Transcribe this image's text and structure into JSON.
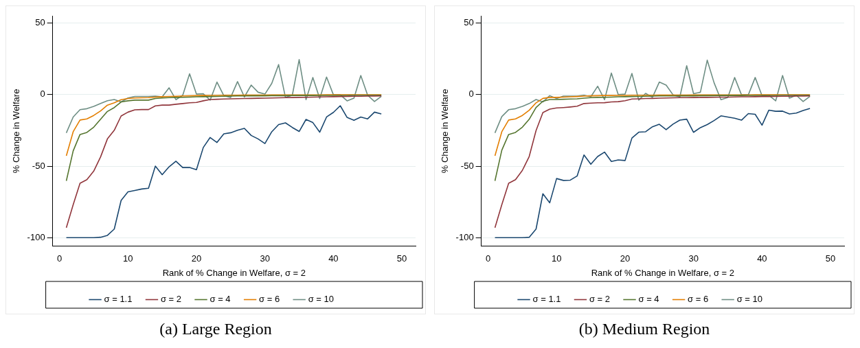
{
  "chart_data": [
    {
      "type": "line",
      "title": "(a) Large Region",
      "xlabel": "Rank of % Change in Welfare, σ = 2",
      "ylabel": "% Change in Welfare",
      "x": [
        1,
        2,
        3,
        4,
        5,
        6,
        7,
        8,
        9,
        10,
        11,
        12,
        13,
        14,
        15,
        16,
        17,
        18,
        19,
        20,
        21,
        22,
        23,
        24,
        25,
        26,
        27,
        28,
        29,
        30,
        31,
        32,
        33,
        34,
        35,
        36,
        37,
        38,
        39,
        40,
        41,
        42,
        43,
        44,
        45,
        46,
        47
      ],
      "xlim": [
        -1,
        52
      ],
      "xticks": [
        0,
        10,
        20,
        30,
        40,
        50
      ],
      "ylim": [
        -106,
        55
      ],
      "yticks": [
        -100,
        -50,
        0,
        50
      ],
      "grid": "y",
      "legend": "bottom",
      "marker": "none",
      "line_style": "solid",
      "series": [
        {
          "name": "σ = 1.1",
          "color": "#1a476f",
          "values": [
            -100,
            -100,
            -100,
            -100,
            -100,
            -99.7,
            -98.4,
            -94,
            -74,
            -68,
            -67,
            -66,
            -65.5,
            -50,
            -56,
            -50.5,
            -46.6,
            -51,
            -51,
            -52.5,
            -37,
            -30,
            -33.5,
            -27.5,
            -26.7,
            -25,
            -23.6,
            -28.6,
            -31,
            -34.2,
            -26,
            -21,
            -19.8,
            -23,
            -25.8,
            -17.4,
            -19.6,
            -26.3,
            -15.7,
            -12.5,
            -7.8,
            -16,
            -18,
            -15.7,
            -17,
            -12.3,
            -13.6
          ]
        },
        {
          "name": "σ = 2",
          "color": "#90353b",
          "values": [
            -93,
            -77,
            -62,
            -59.5,
            -53.5,
            -43.6,
            -31,
            -25,
            -15,
            -12.3,
            -10.7,
            -10.5,
            -10.5,
            -7.9,
            -7.4,
            -7.4,
            -6.8,
            -6.3,
            -5.8,
            -5.5,
            -4.4,
            -3.5,
            -3.3,
            -3.1,
            -3,
            -2.9,
            -2.8,
            -2.7,
            -2.6,
            -2.5,
            -2.4,
            -2.3,
            -2.2,
            -2.1,
            -2,
            -1.9,
            -1.8,
            -1.7,
            -1.6,
            -1.5,
            -1.4,
            -1.3,
            -1.2,
            -1.2,
            -1.1,
            -1.1,
            -1
          ]
        },
        {
          "name": "σ = 4",
          "color": "#55752f",
          "values": [
            -60.3,
            -39.4,
            -27.9,
            -26.5,
            -22.8,
            -17.3,
            -11.8,
            -9.1,
            -5.2,
            -4.4,
            -3.9,
            -3.9,
            -3.9,
            -2.8,
            -2.4,
            -2.2,
            -2,
            -1.9,
            -1.8,
            -1.6,
            -1.5,
            -1.4,
            -1.3,
            -1.2,
            -1.1,
            -1,
            -1,
            -0.9,
            -0.9,
            -0.9,
            -0.8,
            -0.8,
            -0.8,
            -0.7,
            -0.7,
            -0.7,
            -0.7,
            -0.6,
            -0.6,
            -0.6,
            -0.6,
            -0.6,
            -0.5,
            -0.5,
            -0.5,
            -0.5,
            -0.5
          ]
        },
        {
          "name": "σ = 6",
          "color": "#e37e00",
          "values": [
            -42.8,
            -26,
            -17.8,
            -17,
            -14.6,
            -11.5,
            -7.4,
            -5.8,
            -3.6,
            -2.8,
            -2.4,
            -2.3,
            -2.2,
            -1.8,
            -1.5,
            -1.3,
            -1.2,
            -1,
            -0.9,
            -0.8,
            -0.7,
            -0.6,
            -0.6,
            -0.5,
            -0.5,
            -0.5,
            -0.4,
            -0.4,
            -0.4,
            -0.4,
            -0.3,
            -0.3,
            -0.3,
            -0.3,
            -0.3,
            -0.3,
            -0.3,
            -0.3,
            -0.2,
            -0.2,
            -0.2,
            -0.2,
            -0.2,
            -0.2,
            -0.2,
            -0.2,
            -0.2
          ]
        },
        {
          "name": "σ = 10",
          "color": "#6e8e84",
          "values": [
            -26.8,
            -15.7,
            -10.6,
            -9.9,
            -8.3,
            -6.3,
            -4.3,
            -3.5,
            -5.2,
            -2.4,
            -1.3,
            -1.3,
            -1.3,
            -1.1,
            -1.6,
            4.7,
            -3.6,
            -0.5,
            14.5,
            0.3,
            0.5,
            -3.9,
            8.7,
            -0.8,
            -2,
            9,
            -1.7,
            6.6,
            1.6,
            0.3,
            7.8,
            20.9,
            -2.1,
            -0.5,
            24.4,
            -3.6,
            11.9,
            -2.8,
            12.2,
            -0.2,
            -0.2,
            -4.4,
            -2.5,
            13.3,
            -0.5,
            -4.9,
            -1.3
          ]
        }
      ]
    },
    {
      "type": "line",
      "title": "(b) Medium Region",
      "xlabel": "Rank of % Change in Welfare, σ = 2",
      "ylabel": "% Change in Welfare",
      "x": [
        1,
        2,
        3,
        4,
        5,
        6,
        7,
        8,
        9,
        10,
        11,
        12,
        13,
        14,
        15,
        16,
        17,
        18,
        19,
        20,
        21,
        22,
        23,
        24,
        25,
        26,
        27,
        28,
        29,
        30,
        31,
        32,
        33,
        34,
        35,
        36,
        37,
        38,
        39,
        40,
        41,
        42,
        43,
        44,
        45,
        46,
        47
      ],
      "xlim": [
        -1,
        52
      ],
      "xticks": [
        0,
        10,
        20,
        30,
        40,
        50
      ],
      "ylim": [
        -106,
        55
      ],
      "yticks": [
        -100,
        -50,
        0,
        50
      ],
      "grid": "y",
      "legend": "bottom",
      "marker": "none",
      "line_style": "solid",
      "series": [
        {
          "name": "σ = 1.1",
          "color": "#1a476f",
          "values": [
            -100,
            -100,
            -100,
            -100,
            -100,
            -99.7,
            -94,
            -69.3,
            -75.6,
            -58.7,
            -60,
            -59.8,
            -56.9,
            -42.2,
            -48.7,
            -43.3,
            -40.2,
            -46.8,
            -45.7,
            -46.1,
            -30.4,
            -26.3,
            -26,
            -22.5,
            -20.8,
            -24.5,
            -20.7,
            -17.9,
            -17.2,
            -26.4,
            -23.1,
            -21,
            -18.2,
            -14.9,
            -15.7,
            -16.6,
            -17.9,
            -13.3,
            -13.8,
            -21.4,
            -10.9,
            -11.7,
            -11.6,
            -13.6,
            -13,
            -11.2,
            -9.7
          ]
        },
        {
          "name": "σ = 2",
          "color": "#90353b",
          "values": [
            -93,
            -77,
            -62,
            -59.5,
            -53,
            -43.3,
            -25.2,
            -12.6,
            -10.2,
            -9.4,
            -9.1,
            -8.7,
            -8.2,
            -6.3,
            -6,
            -5.8,
            -5.7,
            -5.2,
            -5,
            -4.3,
            -3.1,
            -3,
            -2.8,
            -2.7,
            -2.5,
            -2.4,
            -2.3,
            -2.2,
            -2.2,
            -2.1,
            -2,
            -2,
            -1.9,
            -1.8,
            -1.8,
            -1.7,
            -1.6,
            -1.6,
            -1.5,
            -1.4,
            -1.4,
            -1.3,
            -1.2,
            -1.2,
            -1.1,
            -1.1,
            -1
          ]
        },
        {
          "name": "σ = 4",
          "color": "#55752f",
          "values": [
            -60.3,
            -38.9,
            -27.9,
            -26.5,
            -22.8,
            -17.3,
            -9.1,
            -4.7,
            -3.5,
            -3.5,
            -3.3,
            -3.1,
            -3,
            -2.5,
            -2.2,
            -2,
            -1.9,
            -1.8,
            -1.6,
            -1.5,
            -1.4,
            -1.3,
            -1.2,
            -1.1,
            -1,
            -1,
            -1,
            -0.9,
            -0.9,
            -0.9,
            -0.8,
            -0.8,
            -0.8,
            -0.7,
            -0.7,
            -0.7,
            -0.7,
            -0.6,
            -0.6,
            -0.6,
            -0.6,
            -0.6,
            -0.5,
            -0.5,
            -0.5,
            -0.5,
            -0.5
          ]
        },
        {
          "name": "σ = 6",
          "color": "#e37e00",
          "values": [
            -42.8,
            -26,
            -17.8,
            -17,
            -14.6,
            -11,
            -5.8,
            -2.7,
            -2,
            -2,
            -1.8,
            -1.6,
            -1.4,
            -1.1,
            -0.9,
            -0.8,
            -0.7,
            -0.7,
            -0.6,
            -0.6,
            -0.5,
            -0.5,
            -0.5,
            -0.5,
            -0.4,
            -0.4,
            -0.4,
            -0.4,
            -0.4,
            -0.3,
            -0.3,
            -0.3,
            -0.3,
            -0.3,
            -0.3,
            -0.3,
            -0.3,
            -0.3,
            -0.2,
            -0.2,
            -0.2,
            -0.2,
            -0.2,
            -0.2,
            -0.2,
            -0.2,
            -0.2
          ]
        },
        {
          "name": "σ = 10",
          "color": "#6e8e84",
          "values": [
            -26.8,
            -15.4,
            -10.6,
            -9.9,
            -8.3,
            -6.3,
            -3.5,
            -5.2,
            -0.8,
            -2.8,
            -1.1,
            -1.1,
            -1.1,
            -0.5,
            -1.6,
            5.8,
            -3.6,
            15,
            0,
            0.3,
            14.7,
            -3.9,
            0.8,
            -2,
            8.7,
            6.6,
            -0.2,
            -1.7,
            20.1,
            0.6,
            1.6,
            24,
            8.2,
            -3.6,
            -2.1,
            11.9,
            -0.2,
            -0.2,
            11.9,
            -0.9,
            -0.5,
            -4.4,
            13.3,
            -2.5,
            -0.5,
            -4.9,
            -1.3
          ]
        }
      ]
    }
  ]
}
